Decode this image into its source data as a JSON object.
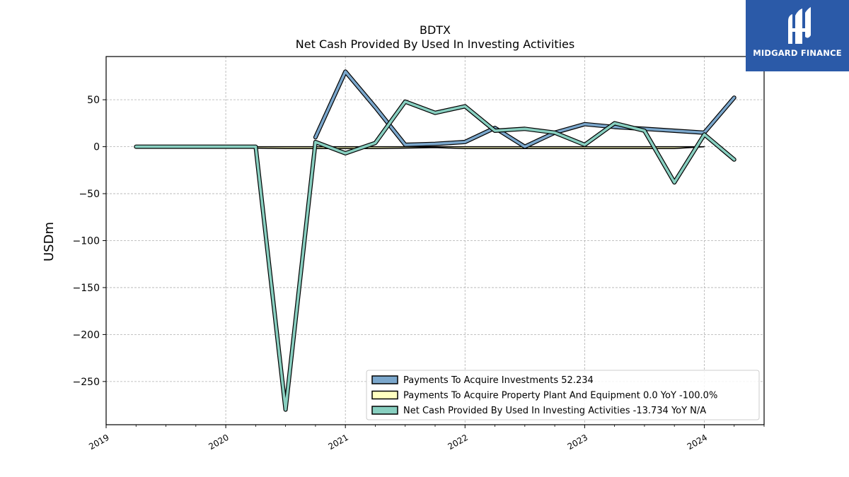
{
  "logo": {
    "text": "MIDGARD FINANCE",
    "icon": "mf-monogram-icon",
    "background": "#2b5aa8"
  },
  "chart_data": {
    "type": "line",
    "title": "BDTX",
    "subtitle": "Net Cash Provided By Used In Investing Activities",
    "ylabel": "USDm",
    "xlabel": "",
    "xlim": [
      2019.0,
      2024.5
    ],
    "ylim": [
      -296,
      96
    ],
    "x_ticks": [
      2019,
      2020,
      2021,
      2022,
      2023,
      2024
    ],
    "x_tick_labels": [
      "2019",
      "2020",
      "2021",
      "2022",
      "2023",
      "2024"
    ],
    "y_ticks": [
      50,
      0,
      -50,
      -100,
      -150,
      -200,
      -250
    ],
    "y_tick_labels": [
      "50",
      "0",
      "−50",
      "−100",
      "−150",
      "−200",
      "−250"
    ],
    "grid": true,
    "legend_position": "bottom-right",
    "series": [
      {
        "name": "Payments To Acquire Investments",
        "legend_label": "Payments To Acquire Investments  52.234",
        "color": "#7ba7cc",
        "type": "line",
        "points": [
          [
            2020.75,
            10
          ],
          [
            2021.0,
            80
          ],
          [
            2021.25,
            42
          ],
          [
            2021.5,
            2
          ],
          [
            2021.75,
            3
          ],
          [
            2022.0,
            5
          ],
          [
            2022.25,
            20
          ],
          [
            2022.5,
            0
          ],
          [
            2022.75,
            15
          ],
          [
            2023.0,
            24
          ],
          [
            2023.25,
            21
          ],
          [
            2023.5,
            19
          ],
          [
            2023.75,
            17
          ],
          [
            2024.0,
            15
          ],
          [
            2024.25,
            52.234
          ]
        ]
      },
      {
        "name": "Payments To Acquire Property Plant And Equipment",
        "legend_label": "Payments To Acquire Property Plant And Equipment  0.0 YoY -100.0%",
        "color": "#ffffc0",
        "type": "area",
        "points": [
          [
            2019.25,
            0
          ],
          [
            2019.5,
            0
          ],
          [
            2019.75,
            0
          ],
          [
            2020.0,
            0
          ],
          [
            2020.25,
            -1.5
          ],
          [
            2020.5,
            -2
          ],
          [
            2020.75,
            -2
          ],
          [
            2021.0,
            -2
          ],
          [
            2021.25,
            -2
          ],
          [
            2021.5,
            -1.5
          ],
          [
            2021.75,
            -1
          ],
          [
            2022.0,
            -2
          ],
          [
            2022.25,
            -2
          ],
          [
            2022.5,
            -2
          ],
          [
            2022.75,
            -2
          ],
          [
            2023.0,
            -2
          ],
          [
            2023.25,
            -2
          ],
          [
            2023.5,
            -2
          ],
          [
            2023.75,
            -2
          ],
          [
            2024.0,
            0
          ]
        ]
      },
      {
        "name": "Net Cash Provided By Used In Investing Activities",
        "legend_label": "Net Cash Provided By Used In Investing Activities  -13.734 YoY N/A",
        "color": "#88cfc0",
        "type": "line",
        "points": [
          [
            2019.25,
            0
          ],
          [
            2019.5,
            0
          ],
          [
            2019.75,
            0
          ],
          [
            2020.0,
            0
          ],
          [
            2020.25,
            0
          ],
          [
            2020.5,
            -280
          ],
          [
            2020.75,
            5
          ],
          [
            2021.0,
            -7
          ],
          [
            2021.25,
            4
          ],
          [
            2021.5,
            48
          ],
          [
            2021.75,
            36
          ],
          [
            2022.0,
            43
          ],
          [
            2022.25,
            17
          ],
          [
            2022.5,
            19
          ],
          [
            2022.75,
            15
          ],
          [
            2023.0,
            2
          ],
          [
            2023.25,
            25
          ],
          [
            2023.5,
            17
          ],
          [
            2023.75,
            -38
          ],
          [
            2024.0,
            13
          ],
          [
            2024.25,
            -13.734
          ]
        ]
      }
    ]
  }
}
